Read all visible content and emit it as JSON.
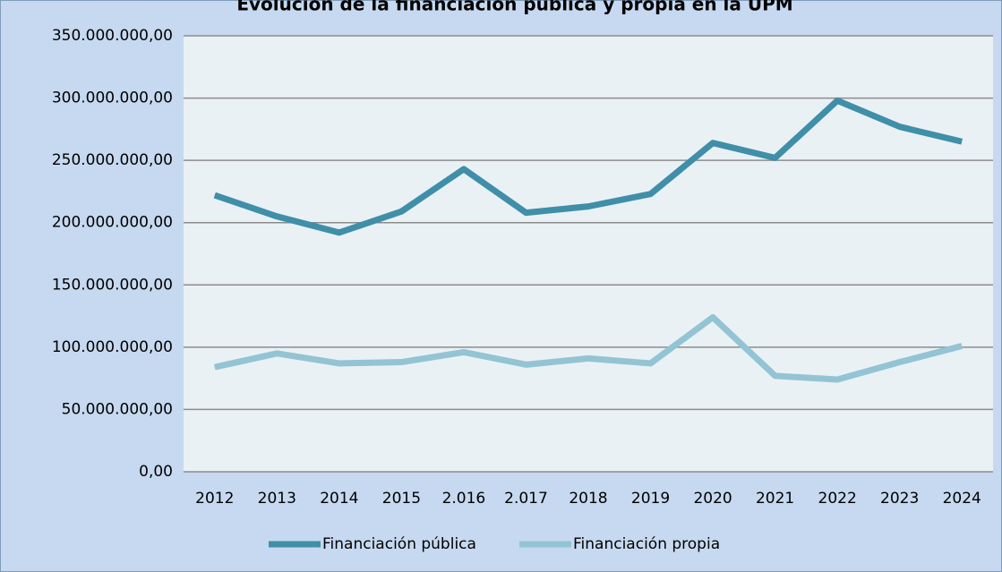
{
  "chart_data": {
    "type": "line",
    "title": "Evolución de la financiación pública y propia en la UPM",
    "categories": [
      "2012",
      "2013",
      "2014",
      "2015",
      "2.016",
      "2.017",
      "2018",
      "2019",
      "2020",
      "2021",
      "2022",
      "2023",
      "2024"
    ],
    "series": [
      {
        "name": "Financiación pública",
        "color": "#3f8fa8",
        "values": [
          222000000,
          205000000,
          192000000,
          209000000,
          243000000,
          208000000,
          213000000,
          223000000,
          264000000,
          252000000,
          298000000,
          277000000,
          265000000
        ]
      },
      {
        "name": "Financiación propia",
        "color": "#93c4d4",
        "values": [
          84000000,
          95000000,
          87000000,
          88000000,
          96000000,
          86000000,
          91000000,
          87000000,
          124000000,
          77000000,
          74000000,
          88000000,
          101000000
        ]
      }
    ],
    "ylim": [
      0,
      350000000
    ],
    "yticks": [
      {
        "value": 0,
        "label": "0,00"
      },
      {
        "value": 50000000,
        "label": "50.000.000,00"
      },
      {
        "value": 100000000,
        "label": "100.000.000,00"
      },
      {
        "value": 150000000,
        "label": "150.000.000,00"
      },
      {
        "value": 200000000,
        "label": "200.000.000,00"
      },
      {
        "value": 250000000,
        "label": "250.000.000,00"
      },
      {
        "value": 300000000,
        "label": "300.000.000,00"
      },
      {
        "value": 350000000,
        "label": "350.000.000,00"
      }
    ],
    "grid": true,
    "legend": "bottom"
  }
}
